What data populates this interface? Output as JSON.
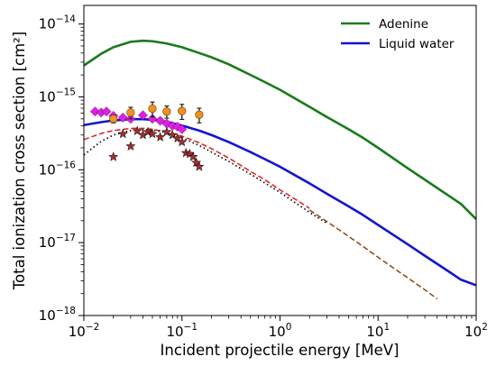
{
  "chart_data": {
    "type": "line",
    "xlabel": "Incident projectile energy [MeV]",
    "ylabel": "Total ionization cross section [cm²]",
    "x_scale": "log",
    "y_scale": "log",
    "xlim": [
      0.01,
      100
    ],
    "ylim": [
      1e-18,
      1.8e-14
    ],
    "x_ticks": [
      {
        "value": 0.01,
        "base": "10",
        "exp": "−2"
      },
      {
        "value": 0.1,
        "base": "10",
        "exp": "−1"
      },
      {
        "value": 1,
        "base": "10",
        "exp": "0"
      },
      {
        "value": 10,
        "base": "10",
        "exp": "1"
      },
      {
        "value": 100,
        "base": "10",
        "exp": "2"
      }
    ],
    "y_ticks": [
      {
        "value": 1e-18,
        "base": "10",
        "exp": "−18"
      },
      {
        "value": 1e-17,
        "base": "10",
        "exp": "−17"
      },
      {
        "value": 1e-16,
        "base": "10",
        "exp": "−16"
      },
      {
        "value": 1e-15,
        "base": "10",
        "exp": "−15"
      },
      {
        "value": 1e-14,
        "base": "10",
        "exp": "−14"
      }
    ],
    "grid": false,
    "legend_position": "top-right",
    "series": [
      {
        "name": "Adenine",
        "style": "solid",
        "color": "#1a7a1a",
        "x": [
          0.01,
          0.015,
          0.02,
          0.03,
          0.04,
          0.05,
          0.07,
          0.1,
          0.15,
          0.2,
          0.3,
          0.5,
          0.7,
          1,
          2,
          3,
          5,
          7,
          10,
          20,
          30,
          50,
          70,
          100
        ],
        "y": [
          2.7e-15,
          3.9e-15,
          4.8e-15,
          5.7e-15,
          5.9e-15,
          5.8e-15,
          5.4e-15,
          4.8e-15,
          4e-15,
          3.5e-15,
          2.8e-15,
          2e-15,
          1.6e-15,
          1.25e-15,
          7.3e-16,
          5.3e-16,
          3.6e-16,
          2.75e-16,
          2e-16,
          1.05e-16,
          7.3e-17,
          4.6e-17,
          3.4e-17,
          2.1e-17
        ]
      },
      {
        "name": "Liquid water",
        "style": "solid",
        "color": "#1414d0",
        "x": [
          0.01,
          0.015,
          0.02,
          0.03,
          0.04,
          0.05,
          0.07,
          0.1,
          0.15,
          0.2,
          0.3,
          0.5,
          0.7,
          1,
          2,
          3,
          5,
          7,
          10,
          20,
          30,
          50,
          70,
          100
        ],
        "y": [
          4.1e-16,
          4.5e-16,
          4.75e-16,
          4.95e-16,
          4.95e-16,
          4.85e-16,
          4.55e-16,
          4.05e-16,
          3.45e-16,
          3e-16,
          2.4e-16,
          1.75e-16,
          1.4e-16,
          1.1e-16,
          6.5e-17,
          4.7e-17,
          3.15e-17,
          2.4e-17,
          1.75e-17,
          9.5e-18,
          6.6e-18,
          4.2e-18,
          3.1e-18,
          2.6e-18
        ]
      },
      {
        "style": "dashed",
        "color": "#dd1c1c",
        "x": [
          0.01,
          0.015,
          0.02,
          0.03,
          0.04,
          0.05,
          0.07,
          0.1,
          0.15,
          0.2,
          0.3,
          0.5,
          0.7,
          1,
          1.5,
          2
        ],
        "y": [
          2.6e-16,
          3.15e-16,
          3.45e-16,
          3.7e-16,
          3.7e-16,
          3.6e-16,
          3.3e-16,
          2.9e-16,
          2.35e-16,
          1.95e-16,
          1.45e-16,
          9.5e-17,
          7.3e-17,
          5.3e-17,
          3.8e-17,
          2.95e-17
        ]
      },
      {
        "style": "dotted",
        "color": "#111111",
        "x": [
          0.01,
          0.015,
          0.02,
          0.03,
          0.04,
          0.05,
          0.07,
          0.1,
          0.15,
          0.2,
          0.3,
          0.5,
          0.7,
          1,
          2,
          3
        ],
        "y": [
          1.6e-16,
          2.45e-16,
          3e-16,
          3.45e-16,
          3.55e-16,
          3.5e-16,
          3.25e-16,
          2.75e-16,
          2.15e-16,
          1.75e-16,
          1.3e-16,
          8.7e-17,
          6.6e-17,
          4.9e-17,
          2.6e-17,
          1.85e-17
        ]
      },
      {
        "style": "dashed",
        "color": "#8b4513",
        "x": [
          2,
          3,
          5,
          7,
          10,
          15,
          20,
          30,
          40
        ],
        "y": [
          2.8e-17,
          1.95e-17,
          1.22e-17,
          8.9e-18,
          6.3e-18,
          4.3e-18,
          3.3e-18,
          2.25e-18,
          1.7e-18
        ]
      },
      {
        "marker": "diamond",
        "color": "#e020e0",
        "x": [
          0.013,
          0.015,
          0.017,
          0.02,
          0.025,
          0.03,
          0.04,
          0.05,
          0.06,
          0.07,
          0.08,
          0.09,
          0.1
        ],
        "y": [
          6.3e-16,
          6.1e-16,
          6.3e-16,
          5.5e-16,
          5.2e-16,
          5e-16,
          5.6e-16,
          5e-16,
          4.7e-16,
          4.3e-16,
          4e-16,
          3.9e-16,
          3.6e-16
        ]
      },
      {
        "marker": "circle",
        "color": "#f0901e",
        "x": [
          0.02,
          0.03,
          0.05,
          0.07,
          0.1,
          0.15
        ],
        "y": [
          5e-16,
          6.1e-16,
          6.9e-16,
          6.3e-16,
          6.4e-16,
          5.7e-16
        ],
        "yerr": [
          6e-17,
          1.1e-16,
          1.6e-16,
          1.2e-16,
          1.5e-16,
          1.3e-16
        ]
      },
      {
        "marker": "star",
        "color": "#a03030",
        "x": [
          0.02,
          0.025,
          0.03,
          0.035,
          0.04,
          0.045,
          0.05,
          0.06,
          0.07,
          0.08,
          0.09,
          0.1,
          0.11,
          0.12,
          0.13,
          0.14,
          0.15
        ],
        "y": [
          1.5e-16,
          3.1e-16,
          2.1e-16,
          3.4e-16,
          3e-16,
          3.3e-16,
          3.1e-16,
          2.8e-16,
          3.3e-16,
          3e-16,
          2.7e-16,
          2.4e-16,
          1.7e-16,
          1.65e-16,
          1.5e-16,
          1.25e-16,
          1.1e-16
        ]
      }
    ]
  }
}
